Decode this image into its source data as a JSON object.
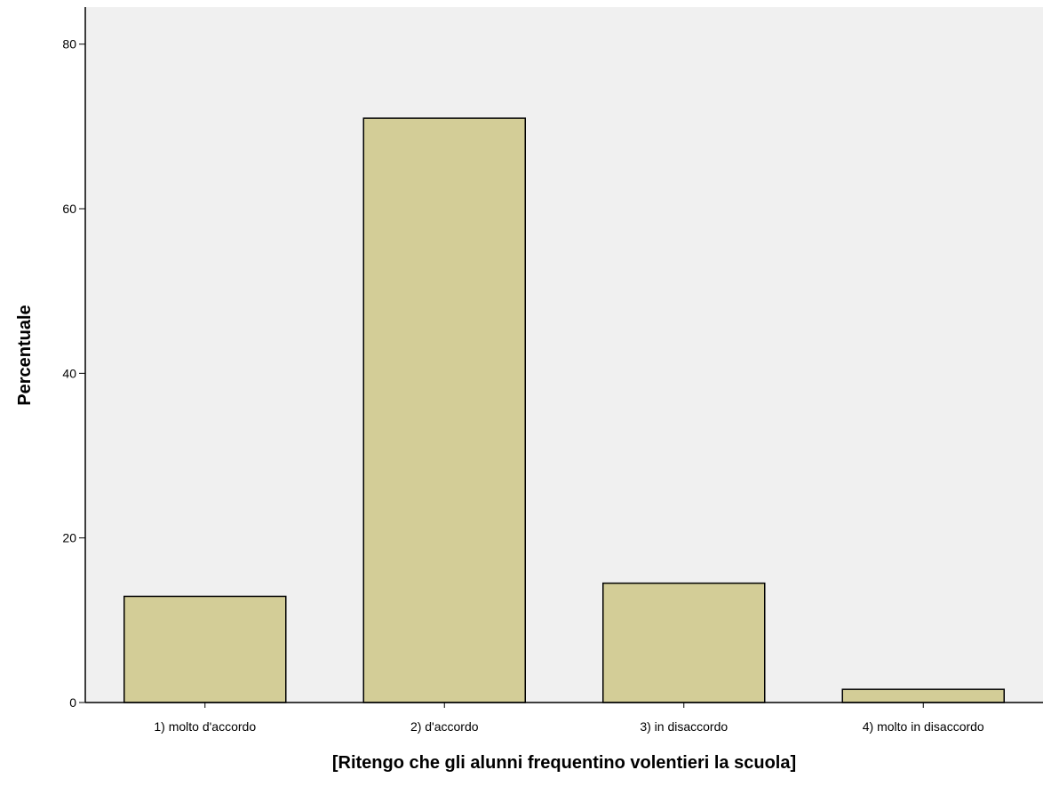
{
  "chart_data": {
    "type": "bar",
    "title": "",
    "categories": [
      "1) molto d'accordo",
      "2) d'accordo",
      "3) in disaccordo",
      "4) molto in disaccordo"
    ],
    "values": [
      12.9,
      71.0,
      14.5,
      1.6
    ],
    "xlabel": "[Ritengo che gli alunni frequentino volentieri la scuola]",
    "ylabel": "Percentuale",
    "ylim": [
      0,
      84.5
    ],
    "yticks": [
      0,
      20,
      40,
      60,
      80
    ],
    "grid": false,
    "legend": "none",
    "colors": {
      "bar_fill": "#d3cd97",
      "bar_stroke": "#000000",
      "plot_background": "#f0f0f0",
      "page_background": "#ffffff"
    }
  }
}
